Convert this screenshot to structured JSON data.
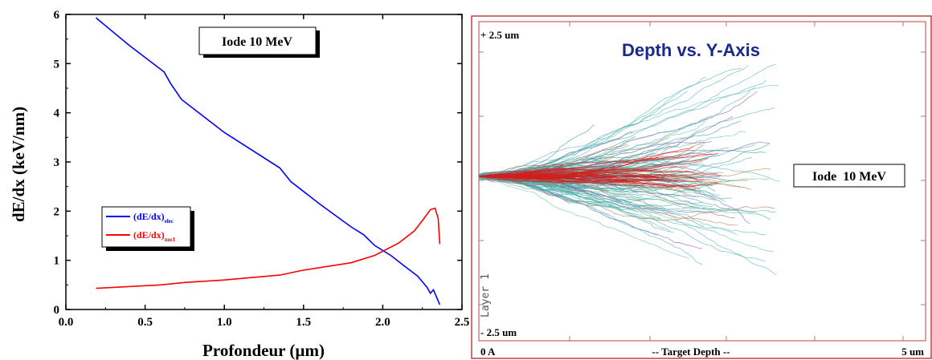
{
  "chart_data": [
    {
      "type": "line",
      "title": "",
      "xlabel": "Profondeur (µm)",
      "ylabel": "dE/dx (keV/nm)",
      "xlim": [
        0.0,
        2.5
      ],
      "ylim": [
        0,
        6
      ],
      "xticks": [
        "0.0",
        "0.5",
        "1.0",
        "1.5",
        "2.0",
        "2.5"
      ],
      "yticks": [
        "0",
        "1",
        "2",
        "3",
        "4",
        "5",
        "6"
      ],
      "annotation": "Iode 10 MeV",
      "legend_position": "middle-left",
      "series": [
        {
          "name_main": "(dE/dx)",
          "name_sub": "elec",
          "color": "#0000ff",
          "x": [
            0.19,
            0.4,
            0.62,
            0.66,
            0.73,
            1.0,
            1.35,
            1.42,
            1.6,
            1.8,
            1.88,
            1.95,
            2.05,
            2.15,
            2.22,
            2.28,
            2.3,
            2.32,
            2.34,
            2.36
          ],
          "y": [
            5.93,
            5.37,
            4.83,
            4.6,
            4.27,
            3.6,
            2.88,
            2.6,
            2.15,
            1.68,
            1.52,
            1.3,
            1.1,
            0.85,
            0.68,
            0.45,
            0.33,
            0.4,
            0.25,
            0.1
          ]
        },
        {
          "name_main": "(dE/dx)",
          "name_sub": "nucl",
          "color": "#ff0000",
          "x": [
            0.19,
            0.6,
            0.75,
            1.0,
            1.35,
            1.5,
            1.8,
            1.95,
            2.1,
            2.2,
            2.26,
            2.3,
            2.33,
            2.35,
            2.36
          ],
          "y": [
            0.43,
            0.5,
            0.55,
            0.6,
            0.7,
            0.8,
            0.95,
            1.1,
            1.35,
            1.6,
            1.85,
            2.03,
            2.06,
            1.85,
            1.33
          ]
        }
      ]
    },
    {
      "type": "scatter",
      "title": "Depth vs. Y-Axis",
      "xlabel": "-- Target Depth --",
      "x_start_label": "0 A",
      "x_end_label": "5 um",
      "y_top_label": "+ 2.5 um",
      "y_bottom_label": "- 2.5 um",
      "layer_label": "Layer 1",
      "annotation": "Iode  10 MeV",
      "colors": {
        "frame": "#c04040",
        "tracks": "#4ab0b0",
        "core": "#d02020",
        "title": "#1a2a8a"
      }
    }
  ]
}
